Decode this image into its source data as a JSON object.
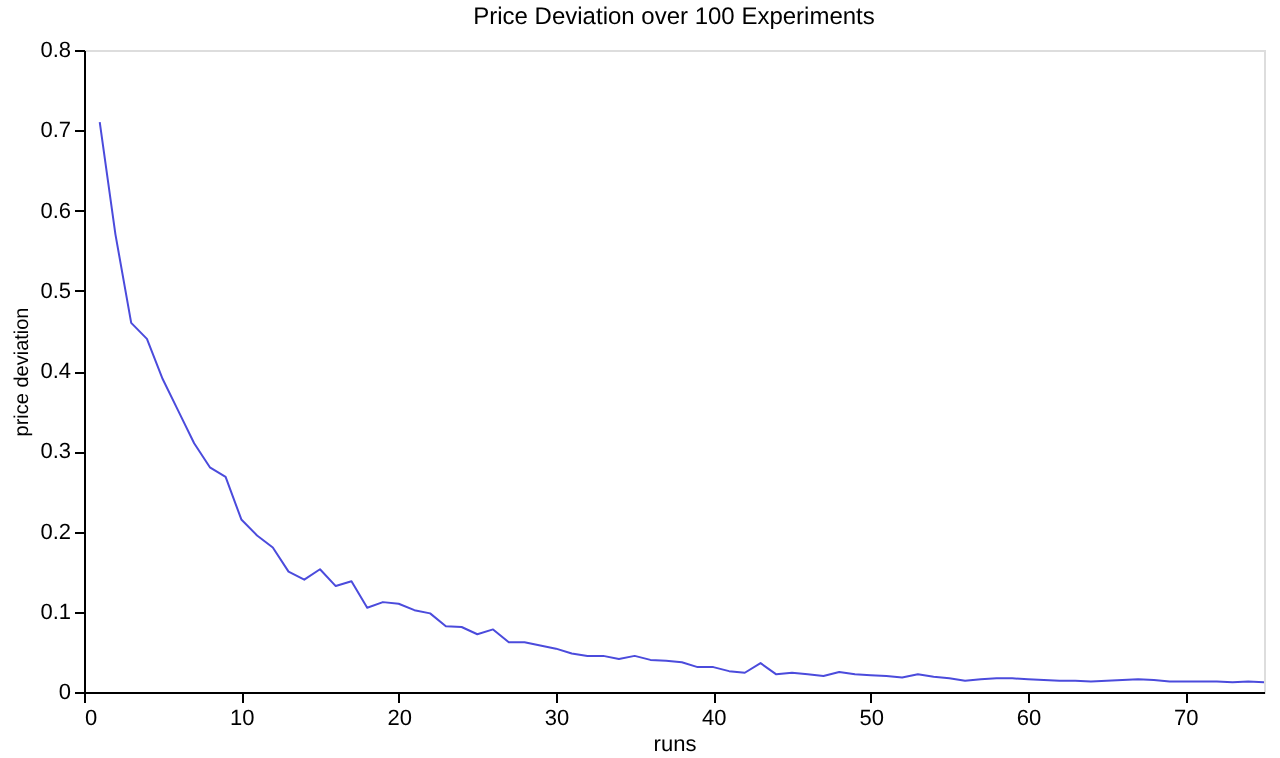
{
  "chart_data": {
    "type": "line",
    "title": "Price Deviation over 100 Experiments",
    "xlabel": "runs",
    "ylabel": "price deviation",
    "x": [
      1,
      2,
      3,
      4,
      5,
      6,
      7,
      8,
      9,
      10,
      11,
      12,
      13,
      14,
      15,
      16,
      17,
      18,
      19,
      20,
      21,
      22,
      23,
      24,
      25,
      26,
      27,
      28,
      29,
      30,
      31,
      32,
      33,
      34,
      35,
      36,
      37,
      38,
      39,
      40,
      41,
      42,
      43,
      44,
      45,
      46,
      47,
      48,
      49,
      50,
      51,
      52,
      53,
      54,
      55,
      56,
      57,
      58,
      59,
      60,
      61,
      62,
      63,
      64,
      65,
      66,
      67,
      68,
      69,
      70,
      71,
      72,
      73,
      74,
      75
    ],
    "series": [
      {
        "color": "#4b4bdc",
        "values": [
          0.71,
          0.57,
          0.46,
          0.44,
          0.39,
          0.35,
          0.31,
          0.28,
          0.268,
          0.215,
          0.195,
          0.18,
          0.15,
          0.14,
          0.153,
          0.132,
          0.138,
          0.105,
          0.112,
          0.11,
          0.102,
          0.098,
          0.082,
          0.081,
          0.072,
          0.078,
          0.062,
          0.062,
          0.058,
          0.054,
          0.048,
          0.045,
          0.045,
          0.041,
          0.045,
          0.04,
          0.039,
          0.037,
          0.031,
          0.031,
          0.026,
          0.024,
          0.036,
          0.022,
          0.024,
          0.022,
          0.02,
          0.025,
          0.022,
          0.021,
          0.02,
          0.018,
          0.022,
          0.019,
          0.017,
          0.014,
          0.016,
          0.017,
          0.017,
          0.016,
          0.015,
          0.014,
          0.014,
          0.013,
          0.014,
          0.015,
          0.016,
          0.015,
          0.013,
          0.013,
          0.013,
          0.013,
          0.012,
          0.013,
          0.012
        ]
      }
    ],
    "xlim": [
      0,
      75
    ],
    "xticks": [
      0,
      10,
      20,
      30,
      40,
      50,
      60,
      70
    ],
    "ylim": [
      0,
      0.8
    ],
    "yticks": [
      0,
      0.1,
      0.2,
      0.3,
      0.4,
      0.5,
      0.6,
      0.7,
      0.8
    ],
    "grid": false,
    "legend": false,
    "marker": "none",
    "line_style": "solid"
  }
}
